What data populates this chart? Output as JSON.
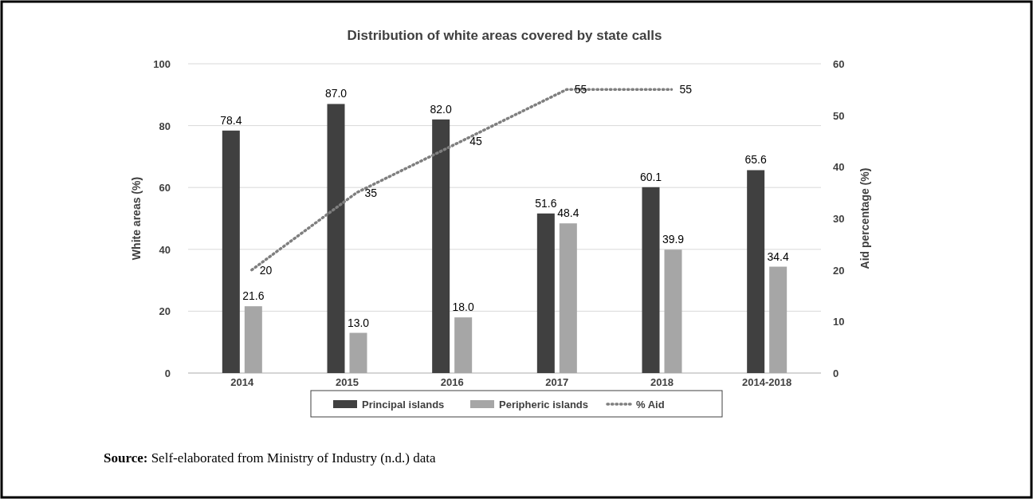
{
  "chart_data": {
    "type": "bar",
    "title": "Distribution of white areas covered by state calls",
    "ylabel": "White areas (%)",
    "y2label": "Aid percentage (%)",
    "categories": [
      "2014",
      "2015",
      "2016",
      "2017",
      "2018",
      "2014-2018"
    ],
    "series": [
      {
        "name": "Principal islands",
        "color": "#404040",
        "values": [
          78.4,
          87.0,
          82.0,
          51.6,
          60.1,
          65.6
        ],
        "value_labels": [
          "78.4",
          "87.0",
          "82.0",
          "51.6",
          "60.1",
          "65.6"
        ]
      },
      {
        "name": "Peripheric islands",
        "color": "#a6a6a6",
        "values": [
          21.6,
          13.0,
          18.0,
          48.4,
          39.9,
          34.4
        ],
        "value_labels": [
          "21.6",
          "13.0",
          "18.0",
          "48.4",
          "39.9",
          "34.4"
        ]
      },
      {
        "name": "% Aid",
        "type": "line",
        "axis": "y2",
        "color": "#7f7f7f",
        "line_style": "dotted",
        "values": [
          20,
          35,
          45,
          55,
          55,
          null
        ],
        "value_labels": [
          "20",
          "35",
          "45",
          "55",
          "55",
          null
        ]
      }
    ],
    "ylim": [
      0,
      100
    ],
    "yticks": [
      0,
      20,
      40,
      60,
      80,
      100
    ],
    "y2lim": [
      0,
      60
    ],
    "y2ticks": [
      0,
      10,
      20,
      30,
      40,
      50,
      60
    ],
    "grid": "y",
    "legend": "bottom",
    "marker": "none",
    "annotations": [
      "Source: Self-elaborated from Ministry of Industry (n.d.) data"
    ]
  }
}
